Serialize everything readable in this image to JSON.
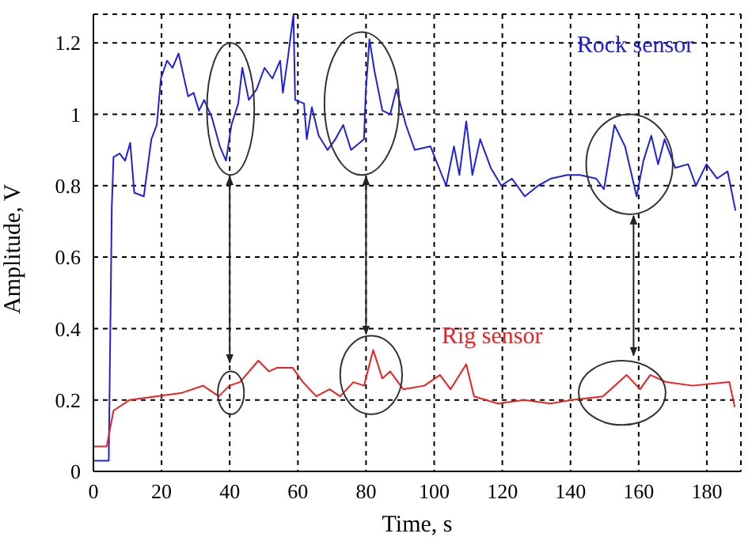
{
  "chart_data": {
    "type": "line",
    "xlabel": "Time, s",
    "ylabel": "Amplitude, V",
    "xlim": [
      0,
      190
    ],
    "ylim": [
      0,
      1.28
    ],
    "xticks": [
      0,
      20,
      40,
      60,
      80,
      100,
      120,
      140,
      160,
      180
    ],
    "yticks": [
      0,
      0.2,
      0.4,
      0.6,
      0.8,
      1,
      1.2
    ],
    "grid": true,
    "marker": "none",
    "line_style": "solid",
    "series": [
      {
        "name": "Rock sensor",
        "color": "#2020e0",
        "x": [
          0,
          4.5,
          5.4,
          5.9,
          7.7,
          9.3,
          10.8,
          12,
          14.8,
          17,
          18.6,
          19.8,
          21.6,
          23.2,
          25,
          27.8,
          29.4,
          31,
          32.5,
          34.8,
          37.1,
          38.9,
          40.5,
          42.5,
          43.7,
          45.6,
          47.9,
          50.2,
          52.5,
          54.8,
          55.6,
          57.1,
          57.9,
          58.7,
          59.2,
          61.8,
          62.6,
          64.1,
          66.1,
          68.7,
          71,
          73.3,
          75.6,
          79.4,
          79.9,
          81,
          82.5,
          84.8,
          87.1,
          88.9,
          91.7,
          94.3,
          98.9,
          103.5,
          105.8,
          107.4,
          109.4,
          111.2,
          113.5,
          116.6,
          119.7,
          122.8,
          126.6,
          130.5,
          134.3,
          139,
          142.8,
          147.5,
          149.8,
          152.9,
          156,
          159.4,
          161.4,
          163.7,
          165.7,
          167.6,
          170.7,
          174.5,
          176.8,
          179.9,
          183,
          186.1,
          188.4
        ],
        "values": [
          0.03,
          0.03,
          0.74,
          0.88,
          0.89,
          0.87,
          0.92,
          0.78,
          0.77,
          0.93,
          0.97,
          1.1,
          1.15,
          1.13,
          1.17,
          1.05,
          1.06,
          1.01,
          1.04,
          0.99,
          0.91,
          0.87,
          0.97,
          1.03,
          1.13,
          1.04,
          1.07,
          1.13,
          1.1,
          1.15,
          1.06,
          1.16,
          1.22,
          1.28,
          1.04,
          1.03,
          0.93,
          1.02,
          0.94,
          0.9,
          0.93,
          0.97,
          0.9,
          0.93,
          1.06,
          1.21,
          1.12,
          1.01,
          1,
          1.07,
          0.97,
          0.9,
          0.91,
          0.8,
          0.91,
          0.83,
          0.98,
          0.83,
          0.93,
          0.85,
          0.8,
          0.82,
          0.77,
          0.8,
          0.82,
          0.83,
          0.83,
          0.82,
          0.79,
          0.97,
          0.91,
          0.77,
          0.87,
          0.94,
          0.86,
          0.93,
          0.85,
          0.86,
          0.8,
          0.86,
          0.82,
          0.84,
          0.73
        ]
      },
      {
        "name": "Rig sensor",
        "color": "#f02020",
        "x": [
          0,
          3.9,
          5.9,
          10.6,
          18.3,
          26,
          32.2,
          36.8,
          39.9,
          43,
          48.4,
          51.5,
          53.8,
          58.5,
          61.5,
          65.4,
          69.3,
          72.4,
          76.3,
          79.4,
          82.1,
          84.8,
          87.1,
          90.9,
          97.1,
          101.7,
          104.8,
          109.4,
          111.7,
          118.7,
          126.4,
          134.1,
          140.3,
          149.5,
          156.5,
          160.4,
          163.4,
          168.1,
          175.8,
          186.6,
          188.2
        ],
        "values": [
          0.07,
          0.07,
          0.17,
          0.2,
          0.21,
          0.22,
          0.24,
          0.21,
          0.24,
          0.25,
          0.31,
          0.28,
          0.29,
          0.29,
          0.25,
          0.21,
          0.23,
          0.21,
          0.25,
          0.24,
          0.34,
          0.26,
          0.28,
          0.23,
          0.24,
          0.27,
          0.23,
          0.3,
          0.21,
          0.19,
          0.2,
          0.19,
          0.2,
          0.21,
          0.27,
          0.23,
          0.27,
          0.25,
          0.24,
          0.25,
          0.18
        ]
      }
    ]
  }
}
